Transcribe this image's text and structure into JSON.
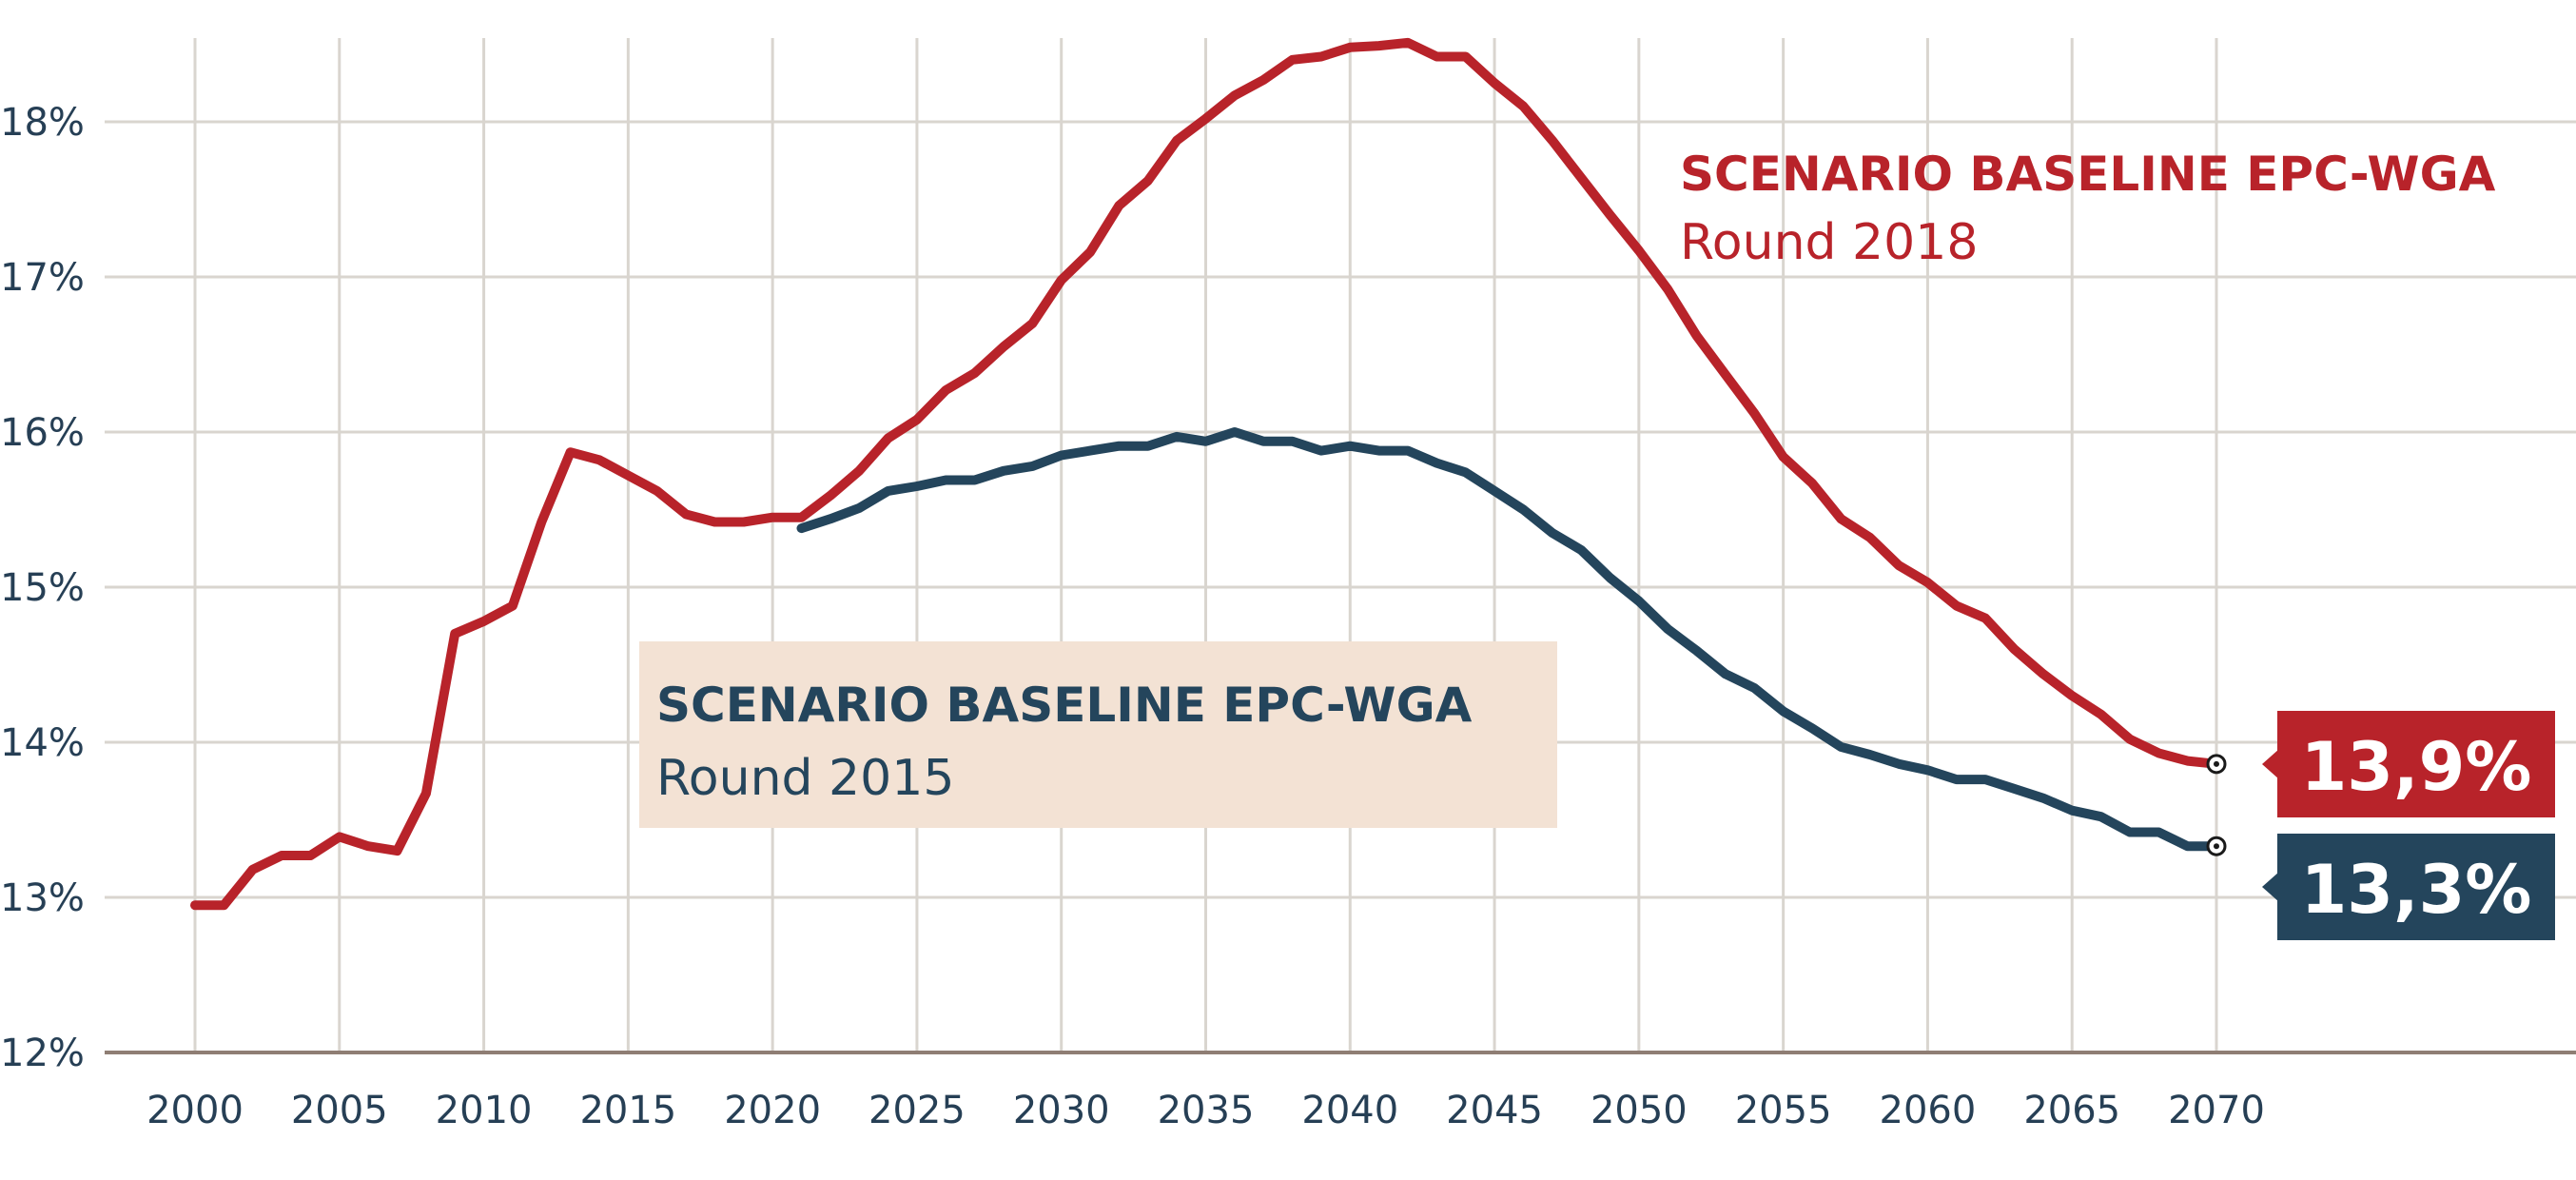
{
  "chart_data": {
    "type": "line",
    "ylabel": "",
    "xlabel": "",
    "xlim": [
      2000,
      2070
    ],
    "ylim": [
      12,
      18.5
    ],
    "x_ticks": [
      "2000",
      "2005",
      "2010",
      "2015",
      "2020",
      "2025",
      "2030",
      "2035",
      "2040",
      "2045",
      "2050",
      "2055",
      "2060",
      "2065",
      "2070"
    ],
    "y_ticks": [
      "12%",
      "13%",
      "14%",
      "15%",
      "16%",
      "17%",
      "18%"
    ],
    "colors": {
      "red": "#b8232a",
      "blue": "#24455c",
      "box": "#f3e2d4",
      "grid": "#d9d5cf",
      "axis": "#8f7e74"
    },
    "series": [
      {
        "name": "Scenario Baseline EPC-WGA Round 2018",
        "label_title": "SCENARIO BASELINE EPC-WGA",
        "label_sub": "Round 2018",
        "end_value_label": "13,9%",
        "color": "#b8232a",
        "x": [
          2000,
          2001,
          2002,
          2003,
          2004,
          2005,
          2006,
          2007,
          2008,
          2009,
          2010,
          2011,
          2012,
          2013,
          2014,
          2015,
          2016,
          2017,
          2018,
          2019,
          2020,
          2021,
          2022,
          2023,
          2024,
          2025,
          2026,
          2027,
          2028,
          2029,
          2030,
          2031,
          2032,
          2033,
          2034,
          2035,
          2036,
          2037,
          2038,
          2039,
          2040,
          2041,
          2042,
          2043,
          2044,
          2045,
          2046,
          2047,
          2048,
          2049,
          2050,
          2051,
          2052,
          2053,
          2054,
          2055,
          2056,
          2057,
          2058,
          2059,
          2060,
          2061,
          2062,
          2063,
          2064,
          2065,
          2066,
          2067,
          2068,
          2069,
          2070
        ],
        "values": [
          12.95,
          12.95,
          13.18,
          13.27,
          13.27,
          13.39,
          13.33,
          13.3,
          13.67,
          14.7,
          14.78,
          14.88,
          15.42,
          15.87,
          15.82,
          15.72,
          15.62,
          15.47,
          15.42,
          15.42,
          15.45,
          15.45,
          15.59,
          15.75,
          15.96,
          16.08,
          16.27,
          16.38,
          16.55,
          16.7,
          16.98,
          17.16,
          17.46,
          17.62,
          17.88,
          18.02,
          18.17,
          18.27,
          18.4,
          18.42,
          18.48,
          18.49,
          18.51,
          18.42,
          18.42,
          18.25,
          18.1,
          17.88,
          17.64,
          17.4,
          17.17,
          16.92,
          16.62,
          16.37,
          16.12,
          15.84,
          15.67,
          15.44,
          15.32,
          15.14,
          15.03,
          14.88,
          14.8,
          14.6,
          14.44,
          14.3,
          14.18,
          14.02,
          13.93,
          13.88,
          13.86
        ]
      },
      {
        "name": "Scenario Baseline EPC-WGA Round 2015",
        "label_title": "SCENARIO BASELINE EPC-WGA",
        "label_sub": "Round 2015",
        "end_value_label": "13,3%",
        "color": "#24455c",
        "x": [
          2021,
          2022,
          2023,
          2024,
          2025,
          2026,
          2027,
          2028,
          2029,
          2030,
          2031,
          2032,
          2033,
          2034,
          2035,
          2036,
          2037,
          2038,
          2039,
          2040,
          2041,
          2042,
          2043,
          2044,
          2045,
          2046,
          2047,
          2048,
          2049,
          2050,
          2051,
          2052,
          2053,
          2054,
          2055,
          2056,
          2057,
          2058,
          2059,
          2060,
          2061,
          2062,
          2063,
          2064,
          2065,
          2066,
          2067,
          2068,
          2069,
          2070
        ],
        "values": [
          15.38,
          15.44,
          15.51,
          15.62,
          15.65,
          15.69,
          15.69,
          15.75,
          15.78,
          15.85,
          15.88,
          15.91,
          15.91,
          15.97,
          15.94,
          16.0,
          15.94,
          15.94,
          15.88,
          15.91,
          15.88,
          15.88,
          15.8,
          15.74,
          15.62,
          15.5,
          15.35,
          15.24,
          15.06,
          14.91,
          14.73,
          14.59,
          14.44,
          14.35,
          14.2,
          14.09,
          13.97,
          13.92,
          13.86,
          13.82,
          13.76,
          13.76,
          13.7,
          13.64,
          13.56,
          13.52,
          13.42,
          13.42,
          13.33,
          13.33
        ]
      }
    ]
  }
}
